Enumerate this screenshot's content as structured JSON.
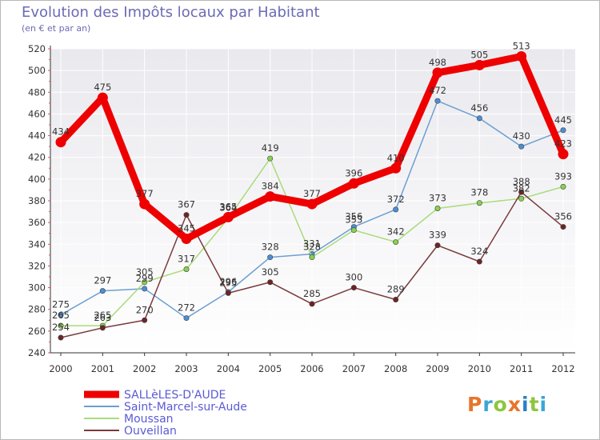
{
  "header": {
    "title": "Evolution des Impôts locaux par Habitant",
    "subtitle": "(en € et par an)"
  },
  "logo": {
    "text": "Proxiti"
  },
  "colors": {
    "background_gradient_top": "#e9e9ee",
    "grid": "#ffffff",
    "axis": "#333333",
    "tick_mark": "#e05050",
    "text": "#333333",
    "title": "#6b6bb5",
    "legend_text": "#5a5ad6"
  },
  "chart_data": {
    "type": "line",
    "title": "Evolution des Impôts locaux par Habitant",
    "subtitle": "(en € et par an)",
    "xlabel": "",
    "ylabel": "",
    "x": [
      "2000",
      "2001",
      "2002",
      "2003",
      "2004",
      "2005",
      "2006",
      "2007",
      "2008",
      "2009",
      "2010",
      "2011",
      "2012"
    ],
    "ylim": [
      240,
      520
    ],
    "yticks": [
      240,
      260,
      280,
      300,
      320,
      340,
      360,
      380,
      400,
      420,
      440,
      460,
      480,
      500,
      520
    ],
    "grid": true,
    "legend_position": "bottom-left",
    "series": [
      {
        "name": "Saint-Marcel-sur-Aude",
        "color": "#6c9fd0",
        "marker": "#4a8fd6",
        "thickness": "thin",
        "values": [
          275,
          297,
          299,
          272,
          296,
          328,
          331,
          356,
          372,
          472,
          456,
          430,
          445
        ],
        "labels": [
          "275",
          "297",
          "299",
          "272",
          "296",
          "328",
          "331",
          "356",
          "372",
          "472",
          "456",
          "430",
          "445"
        ]
      },
      {
        "name": "Moussan",
        "color": "#a8dc7a",
        "marker": "#8ad050",
        "thickness": "thin",
        "values": [
          265,
          265,
          305,
          317,
          364,
          419,
          328,
          353,
          342,
          373,
          378,
          382,
          393
        ],
        "labels": [
          "265",
          "265",
          "305",
          "317",
          "364",
          "419",
          "328",
          "353",
          "342",
          "373",
          "378",
          "382",
          "393"
        ]
      },
      {
        "name": "Ouveillan",
        "color": "#7a3b3b",
        "marker": "#6e2424",
        "thickness": "thin",
        "values": [
          254,
          263,
          270,
          367,
          295,
          305,
          285,
          300,
          289,
          339,
          324,
          388,
          356
        ],
        "labels": [
          "254",
          "263",
          "270",
          "367",
          "295",
          "305",
          "285",
          "300",
          "289",
          "339",
          "324",
          "388",
          "356"
        ]
      },
      {
        "name": "SALLÈLES-D'AUDE",
        "color": "#ee0000",
        "marker": "#ee0000",
        "thickness": "thick",
        "values": [
          434,
          475,
          377,
          345,
          365,
          384,
          377,
          396,
          410,
          498,
          505,
          513,
          423
        ],
        "labels": [
          "434",
          "475",
          "377",
          "345",
          "365",
          "384",
          "377",
          "396",
          "410",
          "498",
          "505",
          "513",
          "423"
        ]
      }
    ],
    "legend": [
      {
        "name": "SALLèLES-D'AUDE",
        "color": "#ee0000",
        "thickness": "thick"
      },
      {
        "name": "Saint-Marcel-sur-Aude",
        "color": "#6c9fd0",
        "thickness": "thin"
      },
      {
        "name": "Moussan",
        "color": "#a8dc7a",
        "thickness": "thin"
      },
      {
        "name": "Ouveillan",
        "color": "#7a3b3b",
        "thickness": "thin"
      }
    ]
  }
}
